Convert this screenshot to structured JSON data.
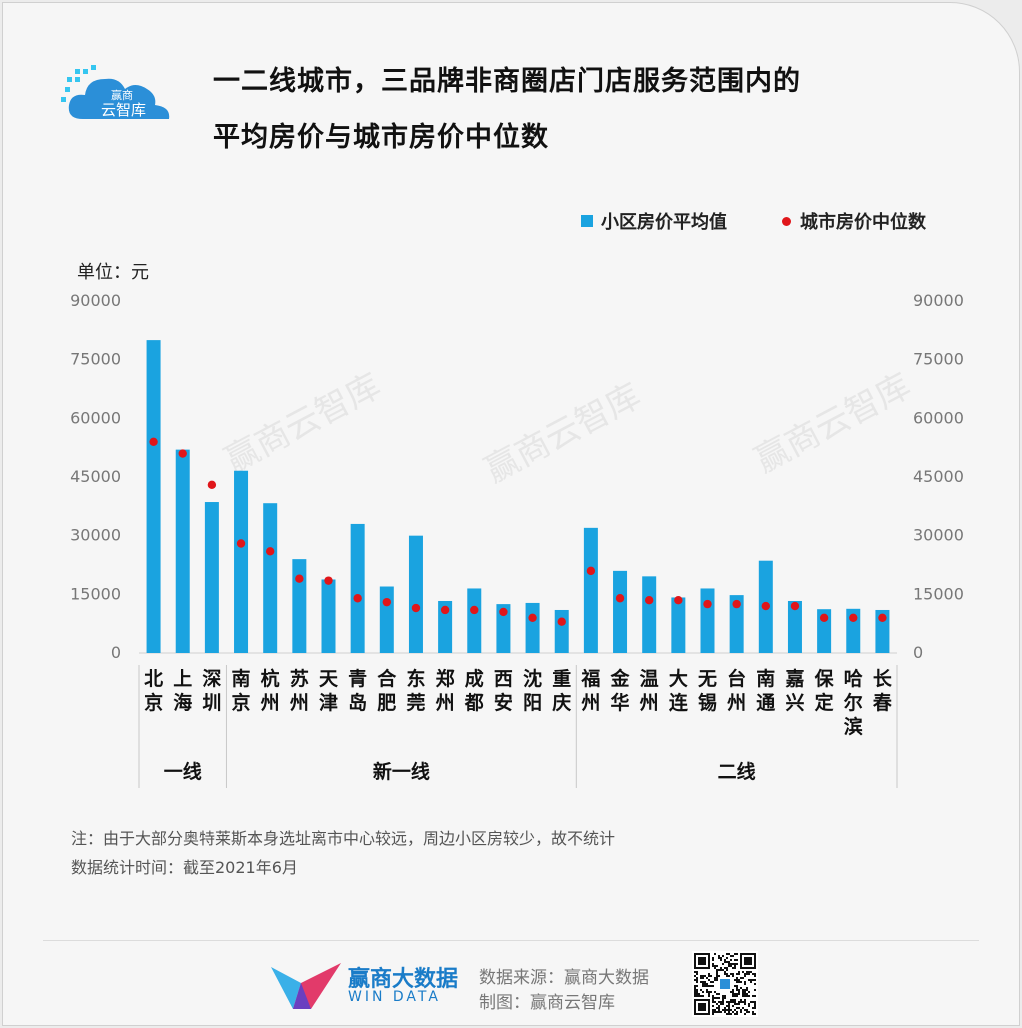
{
  "title_line1": "一二线城市，三品牌非商圈店门店服务范围内的",
  "title_line2": "平均房价与城市房价中位数",
  "logo": {
    "text_top": "赢商",
    "text_bottom": "云智库"
  },
  "legend": {
    "bar": "小区房价平均值",
    "dot": "城市房价中位数"
  },
  "unit": "单位：元",
  "watermark": "赢商云智库",
  "chart_data": {
    "type": "bar",
    "categories": [
      "北京",
      "上海",
      "深圳",
      "南京",
      "杭州",
      "苏州",
      "天津",
      "青岛",
      "合肥",
      "东莞",
      "郑州",
      "成都",
      "西安",
      "沈阳",
      "重庆",
      "福州",
      "金华",
      "温州",
      "大连",
      "无锡",
      "台州",
      "南通",
      "嘉兴",
      "保定",
      "哈尔滨",
      "长春"
    ],
    "series": [
      {
        "name": "小区房价平均值",
        "type": "bar",
        "color": "#1aa3e0",
        "values": [
          80000,
          52000,
          38600,
          46600,
          38300,
          24000,
          18800,
          33000,
          17000,
          30000,
          13300,
          16500,
          12500,
          12800,
          11000,
          32000,
          21000,
          19600,
          14200,
          16500,
          14800,
          23600,
          13300,
          11200,
          11300,
          11000
        ]
      },
      {
        "name": "城市房价中位数",
        "type": "scatter",
        "color": "#e0161a",
        "values": [
          54000,
          51000,
          43000,
          28000,
          26000,
          19000,
          18500,
          14000,
          13000,
          11500,
          11000,
          11000,
          10500,
          9000,
          8000,
          21000,
          14000,
          13500,
          13500,
          12500,
          12500,
          12000,
          12000,
          9000,
          9000,
          9000
        ]
      }
    ],
    "yticks": [
      "90000",
      "75000",
      "60000",
      "45000",
      "30000",
      "15000",
      "0"
    ],
    "ylim": [
      0,
      90000
    ],
    "groups": [
      {
        "label": "一线",
        "start": 0,
        "end": 2
      },
      {
        "label": "新一线",
        "start": 3,
        "end": 14
      },
      {
        "label": "二线",
        "start": 15,
        "end": 25
      }
    ]
  },
  "notes": {
    "line1": "注：由于大部分奥特莱斯本身选址离市中心较远，周边小区房较少，故不统计",
    "line2": "数据统计时间：截至2021年6月"
  },
  "footer": {
    "brand_cn": "赢商大数据",
    "brand_en": "WIN DATA",
    "source": "数据来源：赢商大数据",
    "maker": "制图：赢商云智库"
  },
  "colors": {
    "bar": "#1aa3e0",
    "dot": "#e0161a",
    "brand": "#1a7cc8"
  }
}
